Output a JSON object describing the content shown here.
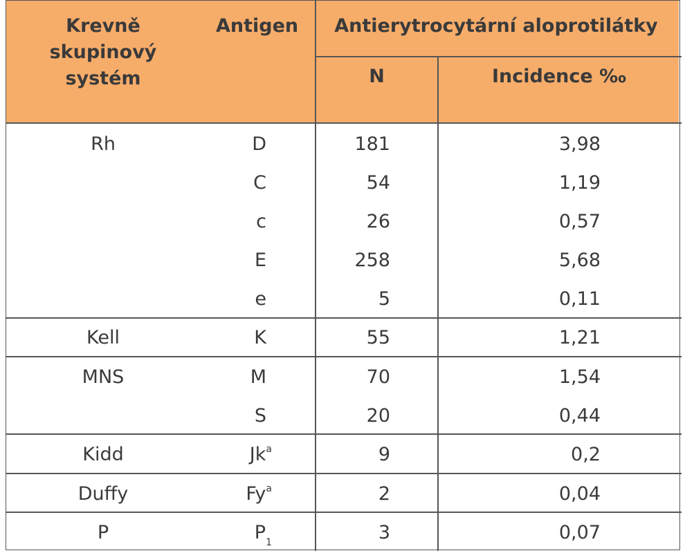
{
  "header": {
    "system_lines": [
      "Krevně",
      "skupinový",
      "systém"
    ],
    "antigen": "Antigen",
    "antibodies": "Antierytrocytární aloprotilátky",
    "n": "N",
    "incidence": "Incidence ‰"
  },
  "rows": [
    {
      "system": "Rh",
      "antigen": "D",
      "n": "181",
      "incidence": "3,98"
    },
    {
      "system": "",
      "antigen": "C",
      "n": "54",
      "incidence": "1,19"
    },
    {
      "system": "",
      "antigen": "c",
      "n": "26",
      "incidence": "0,57"
    },
    {
      "system": "",
      "antigen": "E",
      "n": "258",
      "incidence": "5,68"
    },
    {
      "system": "",
      "antigen": "e",
      "n": "5",
      "incidence": "0,11"
    },
    {
      "system": "Kell",
      "antigen": "K",
      "n": "55",
      "incidence": "1,21"
    },
    {
      "system": "MNS",
      "antigen": "M",
      "n": "70",
      "incidence": "1,54"
    },
    {
      "system": "",
      "antigen": "S",
      "n": "20",
      "incidence": "0,44"
    },
    {
      "system": "Kidd",
      "antigen": "Jk",
      "antigen_sup": "a",
      "n": "9",
      "incidence": "0,2"
    },
    {
      "system": "Duffy",
      "antigen": "Fy",
      "antigen_sup": "a",
      "n": "2",
      "incidence": "0,04"
    },
    {
      "system": "P",
      "antigen": "P",
      "antigen_sub": "1",
      "n": "3",
      "incidence": "0,07"
    }
  ]
}
